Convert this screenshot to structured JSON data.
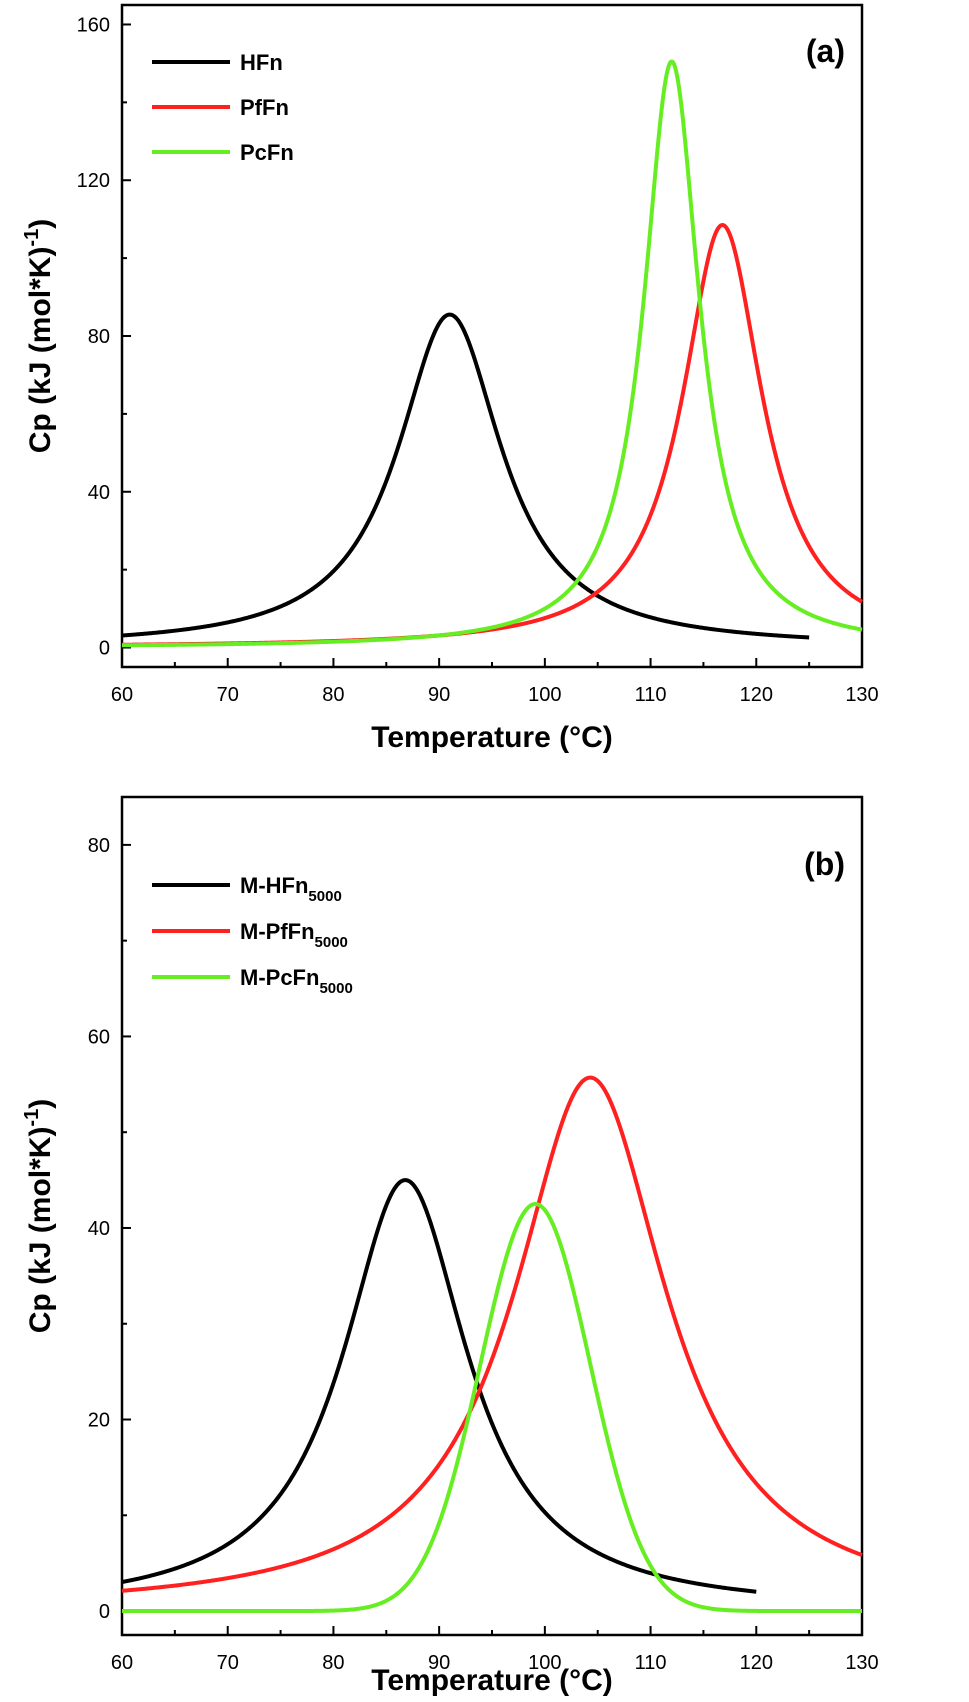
{
  "colors": {
    "black": "#000000",
    "red": "#ff2020",
    "green": "#66ee22"
  },
  "chart_data": [
    {
      "type": "line",
      "panel_label": "(a)",
      "xlabel": "Temperature (°C)",
      "ylabel": "Cp (kJ (mol*K)",
      "ylabel_sup": "-1",
      "ylabel_close": ")",
      "xlim": [
        60,
        130
      ],
      "ylim": [
        -5,
        165
      ],
      "xticks": [
        60,
        70,
        80,
        90,
        100,
        110,
        120,
        130
      ],
      "yticks": [
        0,
        40,
        80,
        120,
        160
      ],
      "legend_position": "top-left",
      "series": [
        {
          "name": "HFn",
          "name_sub": "",
          "color": "#000000",
          "x_range": [
            60,
            125
          ],
          "peak_x": 91,
          "peak_y": 85.5,
          "width": 6.0,
          "shape": "lorentz"
        },
        {
          "name": "PfFn",
          "name_sub": "",
          "color": "#ff2020",
          "x_range": [
            60,
            130
          ],
          "peak_x": 116.8,
          "peak_y": 108.5,
          "width": 4.6,
          "shape": "lorentz"
        },
        {
          "name": "PcFn",
          "name_sub": "",
          "color": "#66ee22",
          "x_range": [
            60,
            130
          ],
          "peak_x": 112,
          "peak_y": 150.5,
          "width": 3.2,
          "shape": "lorentz"
        }
      ]
    },
    {
      "type": "line",
      "panel_label": "(b)",
      "xlabel": "Temperature (°C)",
      "ylabel": "Cp (kJ (mol*K)",
      "ylabel_sup": "-1",
      "ylabel_close": ")",
      "xlim": [
        60,
        130
      ],
      "ylim": [
        -2.5,
        85
      ],
      "xticks": [
        60,
        70,
        80,
        90,
        100,
        110,
        120,
        130
      ],
      "yticks": [
        0,
        20,
        40,
        60,
        80
      ],
      "legend_position": "top-left",
      "series": [
        {
          "name": "M-HFn",
          "name_sub": "5000",
          "color": "#000000",
          "x_range": [
            60,
            120
          ],
          "peak_x": 86.8,
          "peak_y": 45,
          "width": 7.2,
          "shape": "lorentz"
        },
        {
          "name": "M-PfFn",
          "name_sub": "5000",
          "color": "#ff2020",
          "x_range": [
            60,
            130
          ],
          "peak_x": 104.3,
          "peak_y": 55.7,
          "width": 8.8,
          "shape": "lorentz"
        },
        {
          "name": "M-PcFn",
          "name_sub": "5000",
          "color": "#66ee22",
          "x_range": [
            60,
            130
          ],
          "peak_x": 99.1,
          "peak_y": 42.5,
          "width": 5.2,
          "shape": "gauss"
        }
      ]
    }
  ]
}
